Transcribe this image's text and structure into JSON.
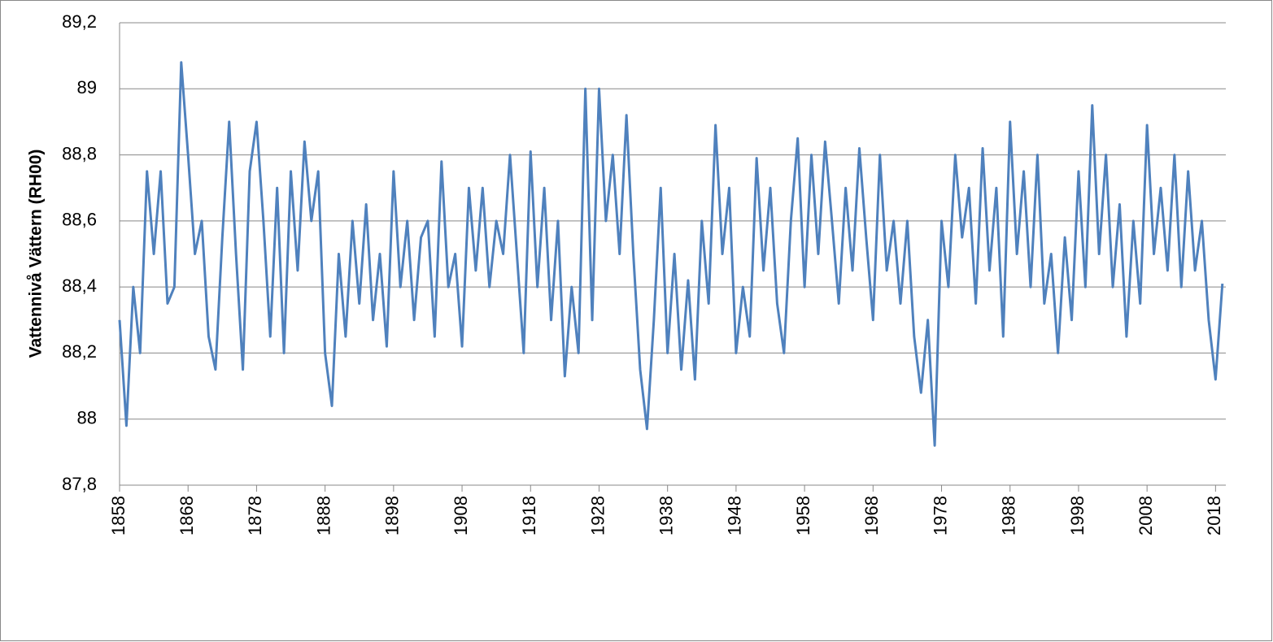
{
  "chart_data": {
    "type": "line",
    "y_label": "Vattennivå Vättern (RH00)",
    "x": [
      1858,
      1859,
      1860,
      1861,
      1862,
      1863,
      1864,
      1865,
      1866,
      1867,
      1868,
      1869,
      1870,
      1871,
      1872,
      1873,
      1874,
      1875,
      1876,
      1877,
      1878,
      1879,
      1880,
      1881,
      1882,
      1883,
      1884,
      1885,
      1886,
      1887,
      1888,
      1889,
      1890,
      1891,
      1892,
      1893,
      1894,
      1895,
      1896,
      1897,
      1898,
      1899,
      1900,
      1901,
      1902,
      1903,
      1904,
      1905,
      1906,
      1907,
      1908,
      1909,
      1910,
      1911,
      1912,
      1913,
      1914,
      1915,
      1916,
      1917,
      1918,
      1919,
      1920,
      1921,
      1922,
      1923,
      1924,
      1925,
      1926,
      1927,
      1928,
      1929,
      1930,
      1931,
      1932,
      1933,
      1934,
      1935,
      1936,
      1937,
      1938,
      1939,
      1940,
      1941,
      1942,
      1943,
      1944,
      1945,
      1946,
      1947,
      1948,
      1949,
      1950,
      1951,
      1952,
      1953,
      1954,
      1955,
      1956,
      1957,
      1958,
      1959,
      1960,
      1961,
      1962,
      1963,
      1964,
      1965,
      1966,
      1967,
      1968,
      1969,
      1970,
      1971,
      1972,
      1973,
      1974,
      1975,
      1976,
      1977,
      1978,
      1979,
      1980,
      1981,
      1982,
      1983,
      1984,
      1985,
      1986,
      1987,
      1988,
      1989,
      1990,
      1991,
      1992,
      1993,
      1994,
      1995,
      1996,
      1997,
      1998,
      1999,
      2000,
      2001,
      2002,
      2003,
      2004,
      2005,
      2006,
      2007,
      2008,
      2009,
      2010,
      2011,
      2012,
      2013,
      2014,
      2015,
      2016,
      2017,
      2018,
      2019
    ],
    "series": [
      {
        "color": "#4f81bd",
        "values": [
          88.3,
          87.98,
          88.4,
          88.2,
          88.75,
          88.5,
          88.75,
          88.35,
          88.4,
          89.08,
          88.8,
          88.5,
          88.6,
          88.25,
          88.15,
          88.55,
          88.9,
          88.5,
          88.15,
          88.75,
          88.9,
          88.6,
          88.25,
          88.7,
          88.2,
          88.75,
          88.45,
          88.84,
          88.6,
          88.75,
          88.2,
          88.04,
          88.5,
          88.25,
          88.6,
          88.35,
          88.65,
          88.3,
          88.5,
          88.22,
          88.75,
          88.4,
          88.6,
          88.3,
          88.55,
          88.6,
          88.25,
          88.78,
          88.4,
          88.5,
          88.22,
          88.7,
          88.45,
          88.7,
          88.4,
          88.6,
          88.5,
          88.8,
          88.5,
          88.2,
          88.81,
          88.4,
          88.7,
          88.3,
          88.6,
          88.13,
          88.4,
          88.2,
          89.0,
          88.3,
          89.0,
          88.6,
          88.8,
          88.5,
          88.92,
          88.5,
          88.15,
          87.97,
          88.3,
          88.7,
          88.2,
          88.5,
          88.15,
          88.42,
          88.12,
          88.6,
          88.35,
          88.89,
          88.5,
          88.7,
          88.2,
          88.4,
          88.25,
          88.79,
          88.45,
          88.7,
          88.35,
          88.2,
          88.6,
          88.85,
          88.4,
          88.8,
          88.5,
          88.84,
          88.6,
          88.35,
          88.7,
          88.45,
          88.82,
          88.55,
          88.3,
          88.8,
          88.45,
          88.6,
          88.35,
          88.6,
          88.25,
          88.08,
          88.3,
          87.92,
          88.6,
          88.4,
          88.8,
          88.55,
          88.7,
          88.35,
          88.82,
          88.45,
          88.7,
          88.25,
          88.9,
          88.5,
          88.75,
          88.4,
          88.8,
          88.35,
          88.5,
          88.2,
          88.55,
          88.3,
          88.75,
          88.4,
          88.95,
          88.5,
          88.8,
          88.4,
          88.65,
          88.25,
          88.6,
          88.35,
          88.89,
          88.5,
          88.7,
          88.45,
          88.8,
          88.4,
          88.75,
          88.45,
          88.6,
          88.3,
          88.12,
          88.41
        ]
      }
    ],
    "xlim": [
      1858,
      2019.5
    ],
    "xticks": [
      1858,
      1868,
      1878,
      1888,
      1898,
      1908,
      1918,
      1928,
      1938,
      1948,
      1958,
      1968,
      1978,
      1988,
      1998,
      2008,
      2018
    ],
    "ylim": [
      87.8,
      89.2
    ],
    "yticks": [
      {
        "value": 87.8,
        "label": "87,8"
      },
      88,
      {
        "value": 88.2,
        "label": "88,2"
      },
      {
        "value": 88.4,
        "label": "88,4"
      },
      {
        "value": 88.6,
        "label": "88,6"
      },
      {
        "value": 88.8,
        "label": "88,8"
      },
      89,
      {
        "value": 89.2,
        "label": "89,2"
      }
    ],
    "grid": true
  }
}
